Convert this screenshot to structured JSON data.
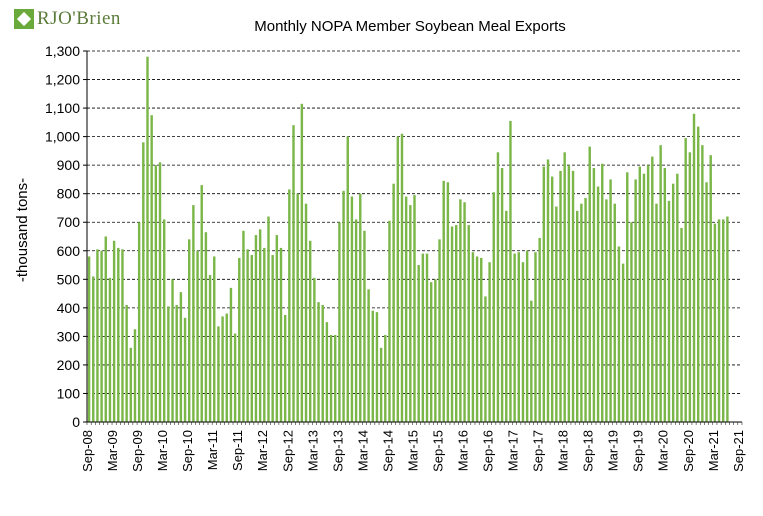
{
  "logo": {
    "text": "RJO'Brien"
  },
  "colors": {
    "bar": "#7ab648",
    "bar_edge": "#4f8a2a",
    "grid": "#000000"
  },
  "chart_data": {
    "type": "bar",
    "title": "Monthly NOPA Member Soybean Meal Exports",
    "xlabel": "",
    "ylabel": "-thousand tons-",
    "ylim": [
      0,
      1300
    ],
    "yticks": [
      0,
      100,
      200,
      300,
      400,
      500,
      600,
      700,
      800,
      900,
      1000,
      1100,
      1200,
      1300
    ],
    "ytick_labels": [
      "0",
      "100",
      "200",
      "300",
      "400",
      "500",
      "600",
      "700",
      "800",
      "900",
      "1,000",
      "1,100",
      "1,200",
      "1,300"
    ],
    "grid": "horizontal dashed",
    "legend": "none",
    "x_tick_labels": [
      "Sep-08",
      "Mar-09",
      "Sep-09",
      "Mar-10",
      "Sep-10",
      "Mar-11",
      "Sep-11",
      "Mar-12",
      "Sep-12",
      "Mar-13",
      "Sep-13",
      "Mar-14",
      "Sep-14",
      "Mar-15",
      "Sep-15",
      "Mar-16",
      "Sep-16",
      "Mar-17",
      "Sep-17",
      "Mar-18",
      "Sep-18",
      "Mar-19",
      "Sep-19",
      "Mar-20",
      "Sep-20",
      "Mar-21",
      "Sep-21"
    ],
    "series": [
      {
        "values": [
          580,
          510,
          605,
          600,
          650,
          505,
          635,
          610,
          605,
          410,
          260,
          325,
          700,
          980,
          1280,
          1075,
          900,
          910,
          710,
          405,
          500,
          410,
          455,
          365,
          640,
          760,
          600,
          830,
          665,
          515,
          580,
          335,
          370,
          380,
          470,
          310,
          575,
          670,
          605,
          585,
          655,
          675,
          610,
          720,
          585,
          655,
          610,
          375,
          815,
          1040,
          800,
          1115,
          765,
          635,
          505,
          420,
          410,
          350,
          305,
          305,
          700,
          810,
          1000,
          790,
          710,
          800,
          670,
          465,
          390,
          385,
          260,
          305,
          705,
          835,
          1000,
          1010,
          790,
          760,
          795,
          550,
          590,
          590,
          490,
          500,
          640,
          845,
          840,
          685,
          690,
          780,
          770,
          690,
          595,
          580,
          575,
          440,
          560,
          805,
          945,
          890,
          740,
          1055,
          590,
          595,
          560,
          600,
          425,
          595,
          645,
          895,
          920,
          860,
          755,
          880,
          945,
          900,
          880,
          740,
          765,
          785,
          965,
          890,
          825,
          905,
          780,
          850,
          765,
          615,
          555,
          875,
          700,
          850,
          895,
          870,
          900,
          930,
          765,
          970,
          890,
          775,
          835,
          870,
          680,
          995,
          945,
          1080,
          1035,
          970,
          840,
          935,
          695,
          710,
          710,
          720
        ]
      }
    ]
  }
}
